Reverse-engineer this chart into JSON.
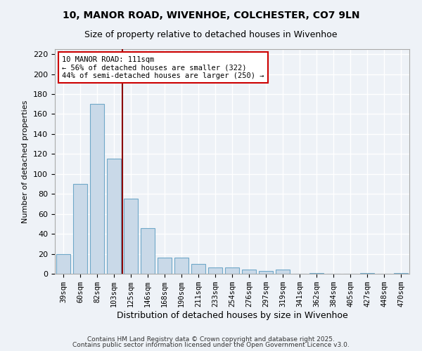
{
  "title1": "10, MANOR ROAD, WIVENHOE, COLCHESTER, CO7 9LN",
  "title2": "Size of property relative to detached houses in Wivenhoe",
  "xlabel": "Distribution of detached houses by size in Wivenhoe",
  "ylabel": "Number of detached properties",
  "categories": [
    "39sqm",
    "60sqm",
    "82sqm",
    "103sqm",
    "125sqm",
    "146sqm",
    "168sqm",
    "190sqm",
    "211sqm",
    "233sqm",
    "254sqm",
    "276sqm",
    "297sqm",
    "319sqm",
    "341sqm",
    "362sqm",
    "384sqm",
    "405sqm",
    "427sqm",
    "448sqm",
    "470sqm"
  ],
  "values": [
    20,
    90,
    170,
    115,
    75,
    46,
    16,
    16,
    10,
    6,
    6,
    4,
    3,
    4,
    0,
    1,
    0,
    0,
    1,
    0,
    1
  ],
  "bar_color": "#c9d9e8",
  "bar_edge_color": "#6fa8c8",
  "bg_color": "#eef2f7",
  "grid_color": "#ffffff",
  "vline_x": 3.5,
  "vline_color": "#8b0000",
  "annotation_line1": "10 MANOR ROAD: 111sqm",
  "annotation_line2": "← 56% of detached houses are smaller (322)",
  "annotation_line3": "44% of semi-detached houses are larger (250) →",
  "annotation_box_color": "#ffffff",
  "annotation_box_edge": "#cc0000",
  "ylim": [
    0,
    225
  ],
  "yticks": [
    0,
    20,
    40,
    60,
    80,
    100,
    120,
    140,
    160,
    180,
    200,
    220
  ],
  "footer1": "Contains HM Land Registry data © Crown copyright and database right 2025.",
  "footer2": "Contains public sector information licensed under the Open Government Licence v3.0."
}
